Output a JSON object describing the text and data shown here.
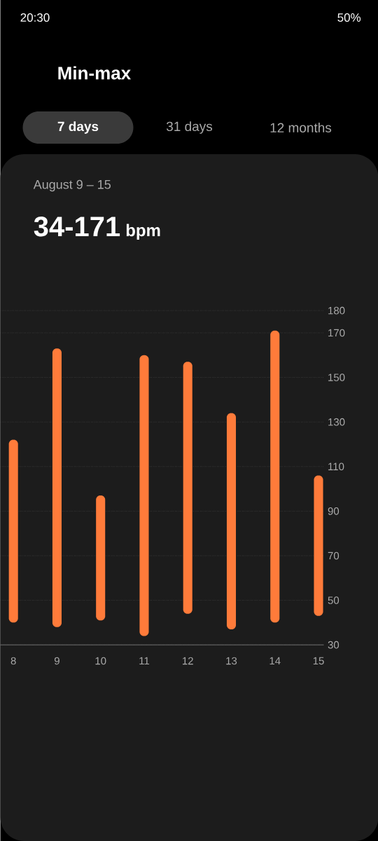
{
  "chart_data": {
    "type": "bar",
    "title": "Min-max",
    "subtitle": "August 9 – 15",
    "categories": [
      "8",
      "9",
      "10",
      "11",
      "12",
      "13",
      "14",
      "15"
    ],
    "base": [
      40,
      38,
      41,
      34,
      44,
      37,
      40,
      43
    ],
    "values": [
      82,
      125,
      56,
      126,
      113,
      97,
      131,
      63
    ],
    "color": "#ff7b3a",
    "ylim": [
      30,
      180
    ],
    "yticks": [
      30,
      50,
      70,
      90,
      110,
      130,
      150,
      170,
      180
    ],
    "grid": "y",
    "annotations": [
      "20:30",
      "50%",
      "7 days",
      "31 days",
      "12 months",
      "34-171",
      "bpm"
    ]
  }
}
